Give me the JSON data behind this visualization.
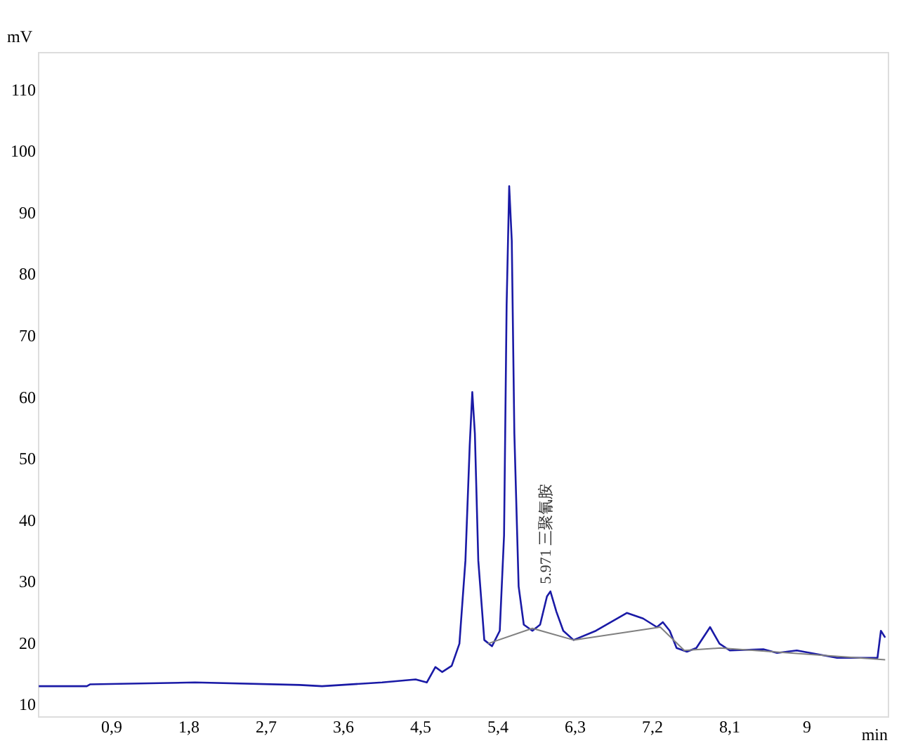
{
  "chart_data": {
    "type": "line",
    "xlabel": "min",
    "ylabel": "mV",
    "xlim": [
      0.05,
      9.95
    ],
    "ylim": [
      8,
      116
    ],
    "xticks": [
      {
        "value": 0.9,
        "label": "0,9"
      },
      {
        "value": 1.8,
        "label": "1,8"
      },
      {
        "value": 2.7,
        "label": "2,7"
      },
      {
        "value": 3.6,
        "label": "3,6"
      },
      {
        "value": 4.5,
        "label": "4,5"
      },
      {
        "value": 5.4,
        "label": "5,4"
      },
      {
        "value": 6.3,
        "label": "6,3"
      },
      {
        "value": 7.2,
        "label": "7,2"
      },
      {
        "value": 8.1,
        "label": "8,1"
      },
      9
    ],
    "yticks": [
      10,
      20,
      30,
      40,
      50,
      60,
      70,
      80,
      90,
      100,
      110
    ],
    "grid": false,
    "marker": "none",
    "line_style": "solid",
    "series": [
      {
        "color": "#1a1aa6",
        "x": [
          0.06,
          0.62,
          0.66,
          1.88,
          3.1,
          3.36,
          4.06,
          4.45,
          4.58,
          4.68,
          4.76,
          4.87,
          4.96,
          5.03,
          5.08,
          5.11,
          5.14,
          5.18,
          5.25,
          5.34,
          5.43,
          5.48,
          5.51,
          5.54,
          5.57,
          5.6,
          5.65,
          5.71,
          5.81,
          5.9,
          5.98,
          6.02,
          6.09,
          6.17,
          6.29,
          6.55,
          6.91,
          7.1,
          7.26,
          7.33,
          7.41,
          7.49,
          7.61,
          7.72,
          7.88,
          7.99,
          8.11,
          8.5,
          8.66,
          8.89,
          9.36,
          9.83,
          9.87,
          9.92
        ],
        "values": [
          12.9,
          12.9,
          13.2,
          13.5,
          13.1,
          12.9,
          13.5,
          14.0,
          13.5,
          16.0,
          15.2,
          16.2,
          19.8,
          33.3,
          52,
          60.7,
          54,
          33.3,
          20.4,
          19.4,
          21.9,
          37.4,
          74.9,
          94.2,
          85.3,
          54,
          29.1,
          22.9,
          21.9,
          22.9,
          27.5,
          28.3,
          25,
          21.9,
          20.4,
          21.9,
          24.8,
          23.9,
          22.5,
          23.3,
          21.9,
          19.1,
          18.5,
          19.1,
          22.5,
          19.8,
          18.7,
          18.9,
          18.3,
          18.7,
          17.5,
          17.5,
          21.9,
          20.8
        ]
      },
      {
        "color": "#808080",
        "x": [
          5.29,
          5.81,
          6.29,
          7.3,
          7.58,
          8.0,
          9.92
        ],
        "values": [
          19.8,
          22.3,
          20.4,
          22.5,
          18.7,
          19.1,
          17.2
        ]
      }
    ],
    "annotations": [
      {
        "text": "5.971  三聚氰胺",
        "x": 5.97,
        "y": 29.5
      }
    ]
  }
}
